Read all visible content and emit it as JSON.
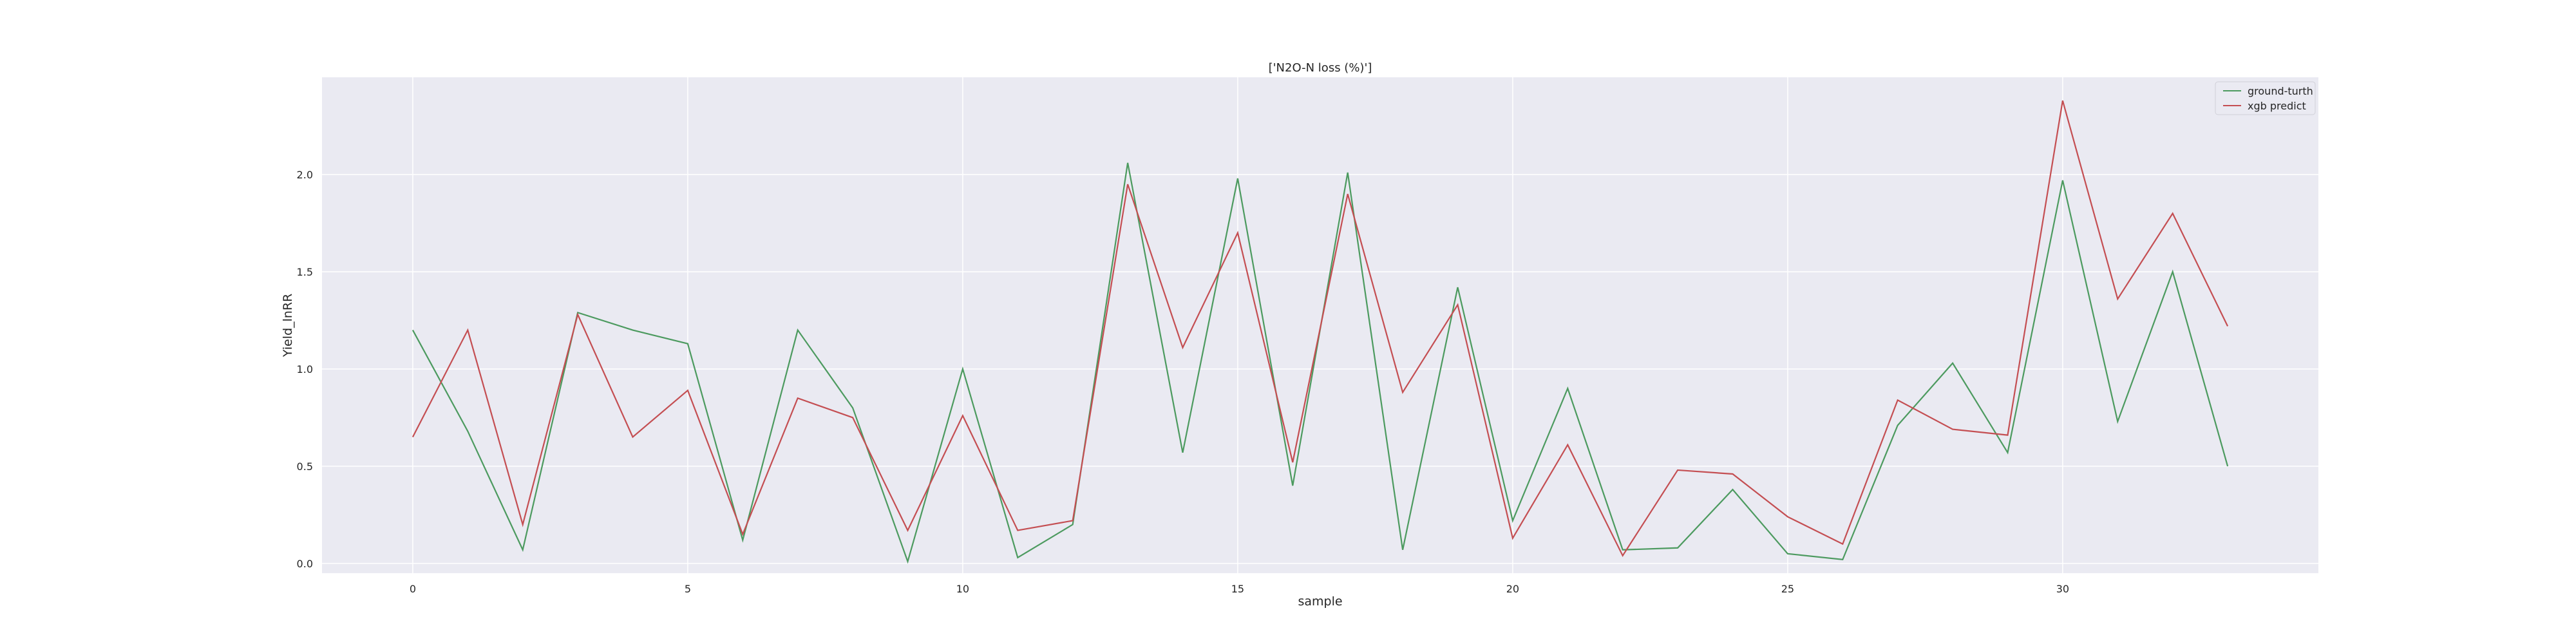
{
  "chart_data": {
    "type": "line",
    "title": "['N2O-N loss (%)']",
    "xlabel": "sample",
    "ylabel": "Yield_lnRR",
    "x": [
      0,
      1,
      2,
      3,
      4,
      5,
      6,
      7,
      8,
      9,
      10,
      11,
      12,
      13,
      14,
      15,
      16,
      17,
      18,
      19,
      20,
      21,
      22,
      23,
      24,
      25,
      26,
      27,
      28,
      29,
      30,
      31,
      32,
      33
    ],
    "xlim": [
      -1.65,
      34.65
    ],
    "ylim": [
      -0.05,
      2.5
    ],
    "xticks": [
      0,
      5,
      10,
      15,
      20,
      25,
      30
    ],
    "yticks": [
      0.0,
      0.5,
      1.0,
      1.5,
      2.0
    ],
    "xtick_labels": [
      "0",
      "5",
      "10",
      "15",
      "20",
      "25",
      "30"
    ],
    "ytick_labels": [
      "0.0",
      "0.5",
      "1.0",
      "1.5",
      "2.0"
    ],
    "grid": true,
    "legend_position": "top-right",
    "series": [
      {
        "name": "ground-turth",
        "color": "#4c9a5f",
        "values": [
          1.2,
          0.68,
          0.07,
          1.29,
          1.2,
          1.13,
          0.12,
          1.2,
          0.8,
          0.01,
          1.0,
          0.03,
          0.2,
          2.06,
          0.57,
          1.98,
          0.4,
          2.01,
          0.07,
          1.42,
          0.22,
          0.9,
          0.07,
          0.08,
          0.38,
          0.05,
          0.02,
          0.71,
          1.03,
          0.57,
          1.97,
          0.73,
          1.5,
          0.5
        ]
      },
      {
        "name": "xgb predict",
        "color": "#c44e52",
        "values": [
          0.65,
          1.2,
          0.2,
          1.28,
          0.65,
          0.89,
          0.15,
          0.85,
          0.75,
          0.17,
          0.76,
          0.17,
          0.22,
          1.95,
          1.11,
          1.7,
          0.52,
          1.9,
          0.88,
          1.33,
          0.13,
          0.61,
          0.04,
          0.48,
          0.46,
          0.24,
          0.1,
          0.84,
          0.69,
          0.66,
          2.38,
          1.36,
          1.8,
          1.22
        ]
      }
    ]
  }
}
